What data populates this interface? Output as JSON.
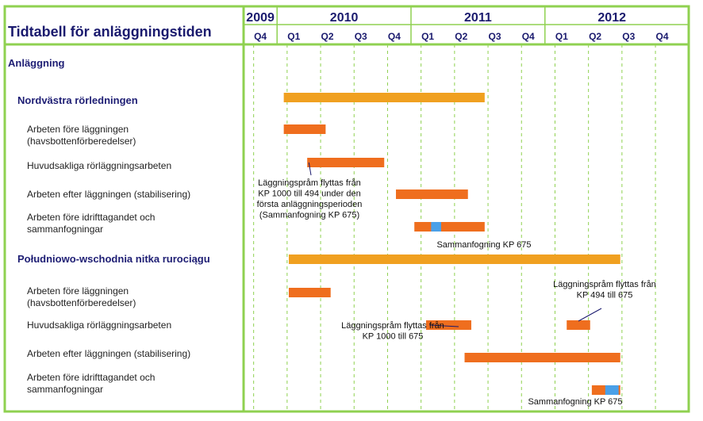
{
  "title": "Tidtabell för anläggningstiden",
  "years": [
    {
      "label": "2009",
      "quarters": [
        "Q4"
      ]
    },
    {
      "label": "2010",
      "quarters": [
        "Q1",
        "Q2",
        "Q3",
        "Q4"
      ]
    },
    {
      "label": "2011",
      "quarters": [
        "Q1",
        "Q2",
        "Q3",
        "Q4"
      ]
    },
    {
      "label": "2012",
      "quarters": [
        "Q1",
        "Q2",
        "Q3",
        "Q4"
      ]
    }
  ],
  "sections": [
    {
      "label": "Anläggning",
      "kind": "header"
    }
  ],
  "rows": [
    {
      "id": "nw-main",
      "kind": "group",
      "lines": [
        "Nordvästra rörledningen"
      ],
      "bars": [
        {
          "start": 1.2,
          "end": 7.2,
          "type": "main"
        }
      ]
    },
    {
      "id": "nw-1",
      "kind": "task",
      "lines": [
        "Arbeten före läggningen",
        "(havsbottenförberedelser)"
      ],
      "bars": [
        {
          "start": 1.2,
          "end": 2.45,
          "type": "task"
        }
      ]
    },
    {
      "id": "nw-2",
      "kind": "task",
      "lines": [
        "Huvudsakliga rörläggningsarbeten"
      ],
      "bars": [
        {
          "start": 1.9,
          "end": 4.2,
          "type": "task"
        }
      ]
    },
    {
      "id": "nw-3",
      "kind": "task",
      "lines": [
        "Arbeten efter läggningen (stabilisering)"
      ],
      "bars": [
        {
          "start": 4.55,
          "end": 6.7,
          "type": "task"
        }
      ]
    },
    {
      "id": "nw-4",
      "kind": "task",
      "lines": [
        "Arbeten före idrifttagandet och",
        "sammanfogningar"
      ],
      "bars": [
        {
          "start": 5.1,
          "end": 7.2,
          "type": "task"
        },
        {
          "start": 5.6,
          "end": 5.9,
          "type": "joint"
        }
      ]
    },
    {
      "id": "se-main",
      "kind": "group",
      "lines": [
        "Południowo-wschodnia nitka rurociągu"
      ],
      "bars": [
        {
          "start": 1.35,
          "end": 11.25,
          "type": "main"
        }
      ]
    },
    {
      "id": "se-1",
      "kind": "task",
      "lines": [
        "Arbeten före läggningen",
        "(havsbottenförberedelser)"
      ],
      "bars": [
        {
          "start": 1.35,
          "end": 2.6,
          "type": "task"
        }
      ]
    },
    {
      "id": "se-2",
      "kind": "task",
      "lines": [
        "Huvudsakliga rörläggningsarbeten"
      ],
      "bars": [
        {
          "start": 5.45,
          "end": 6.8,
          "type": "task"
        },
        {
          "start": 9.65,
          "end": 10.35,
          "type": "task"
        }
      ]
    },
    {
      "id": "se-3",
      "kind": "task",
      "lines": [
        "Arbeten efter läggningen (stabilisering)"
      ],
      "bars": [
        {
          "start": 6.6,
          "end": 11.25,
          "type": "task"
        }
      ]
    },
    {
      "id": "se-4",
      "kind": "task",
      "lines": [
        "Arbeten före idrifttagandet och",
        "sammanfogningar"
      ],
      "bars": [
        {
          "start": 10.4,
          "end": 11.25,
          "type": "task"
        },
        {
          "start": 10.8,
          "end": 11.2,
          "type": "joint"
        }
      ]
    }
  ],
  "annotations": [
    {
      "id": "ann-1",
      "lines": [
        "Läggningspråm flyttas från",
        "KP 1000 till 494 under den",
        "första anläggningsperioden",
        "(Sammanfogning KP 675)"
      ],
      "row": "nw-2",
      "at": 1.95
    },
    {
      "id": "ann-2",
      "lines": [
        "Sammanfogning KP 675"
      ],
      "row": "nw-4",
      "at": 5.75
    },
    {
      "id": "ann-3",
      "lines": [
        "Läggningspråm flyttas från",
        "KP 494 till 675"
      ],
      "row": "se-2",
      "at": 10.0
    },
    {
      "id": "ann-4",
      "lines": [
        "Läggningspråm flyttas från",
        "KP 1000 till 675"
      ],
      "row": "se-2",
      "at": 5.5
    },
    {
      "id": "ann-5",
      "lines": [
        "Sammanfogning KP 675"
      ],
      "row": "se-4",
      "at": 11.0
    }
  ],
  "colors": {
    "frame": "#8fd150",
    "title": "#1a1a6e",
    "group": "#1e1e74",
    "task": "#222222",
    "main": "#f0a020",
    "taskbar": "#ef6e1e",
    "joint": "#4aa0e8",
    "dash": "#8fd150"
  }
}
